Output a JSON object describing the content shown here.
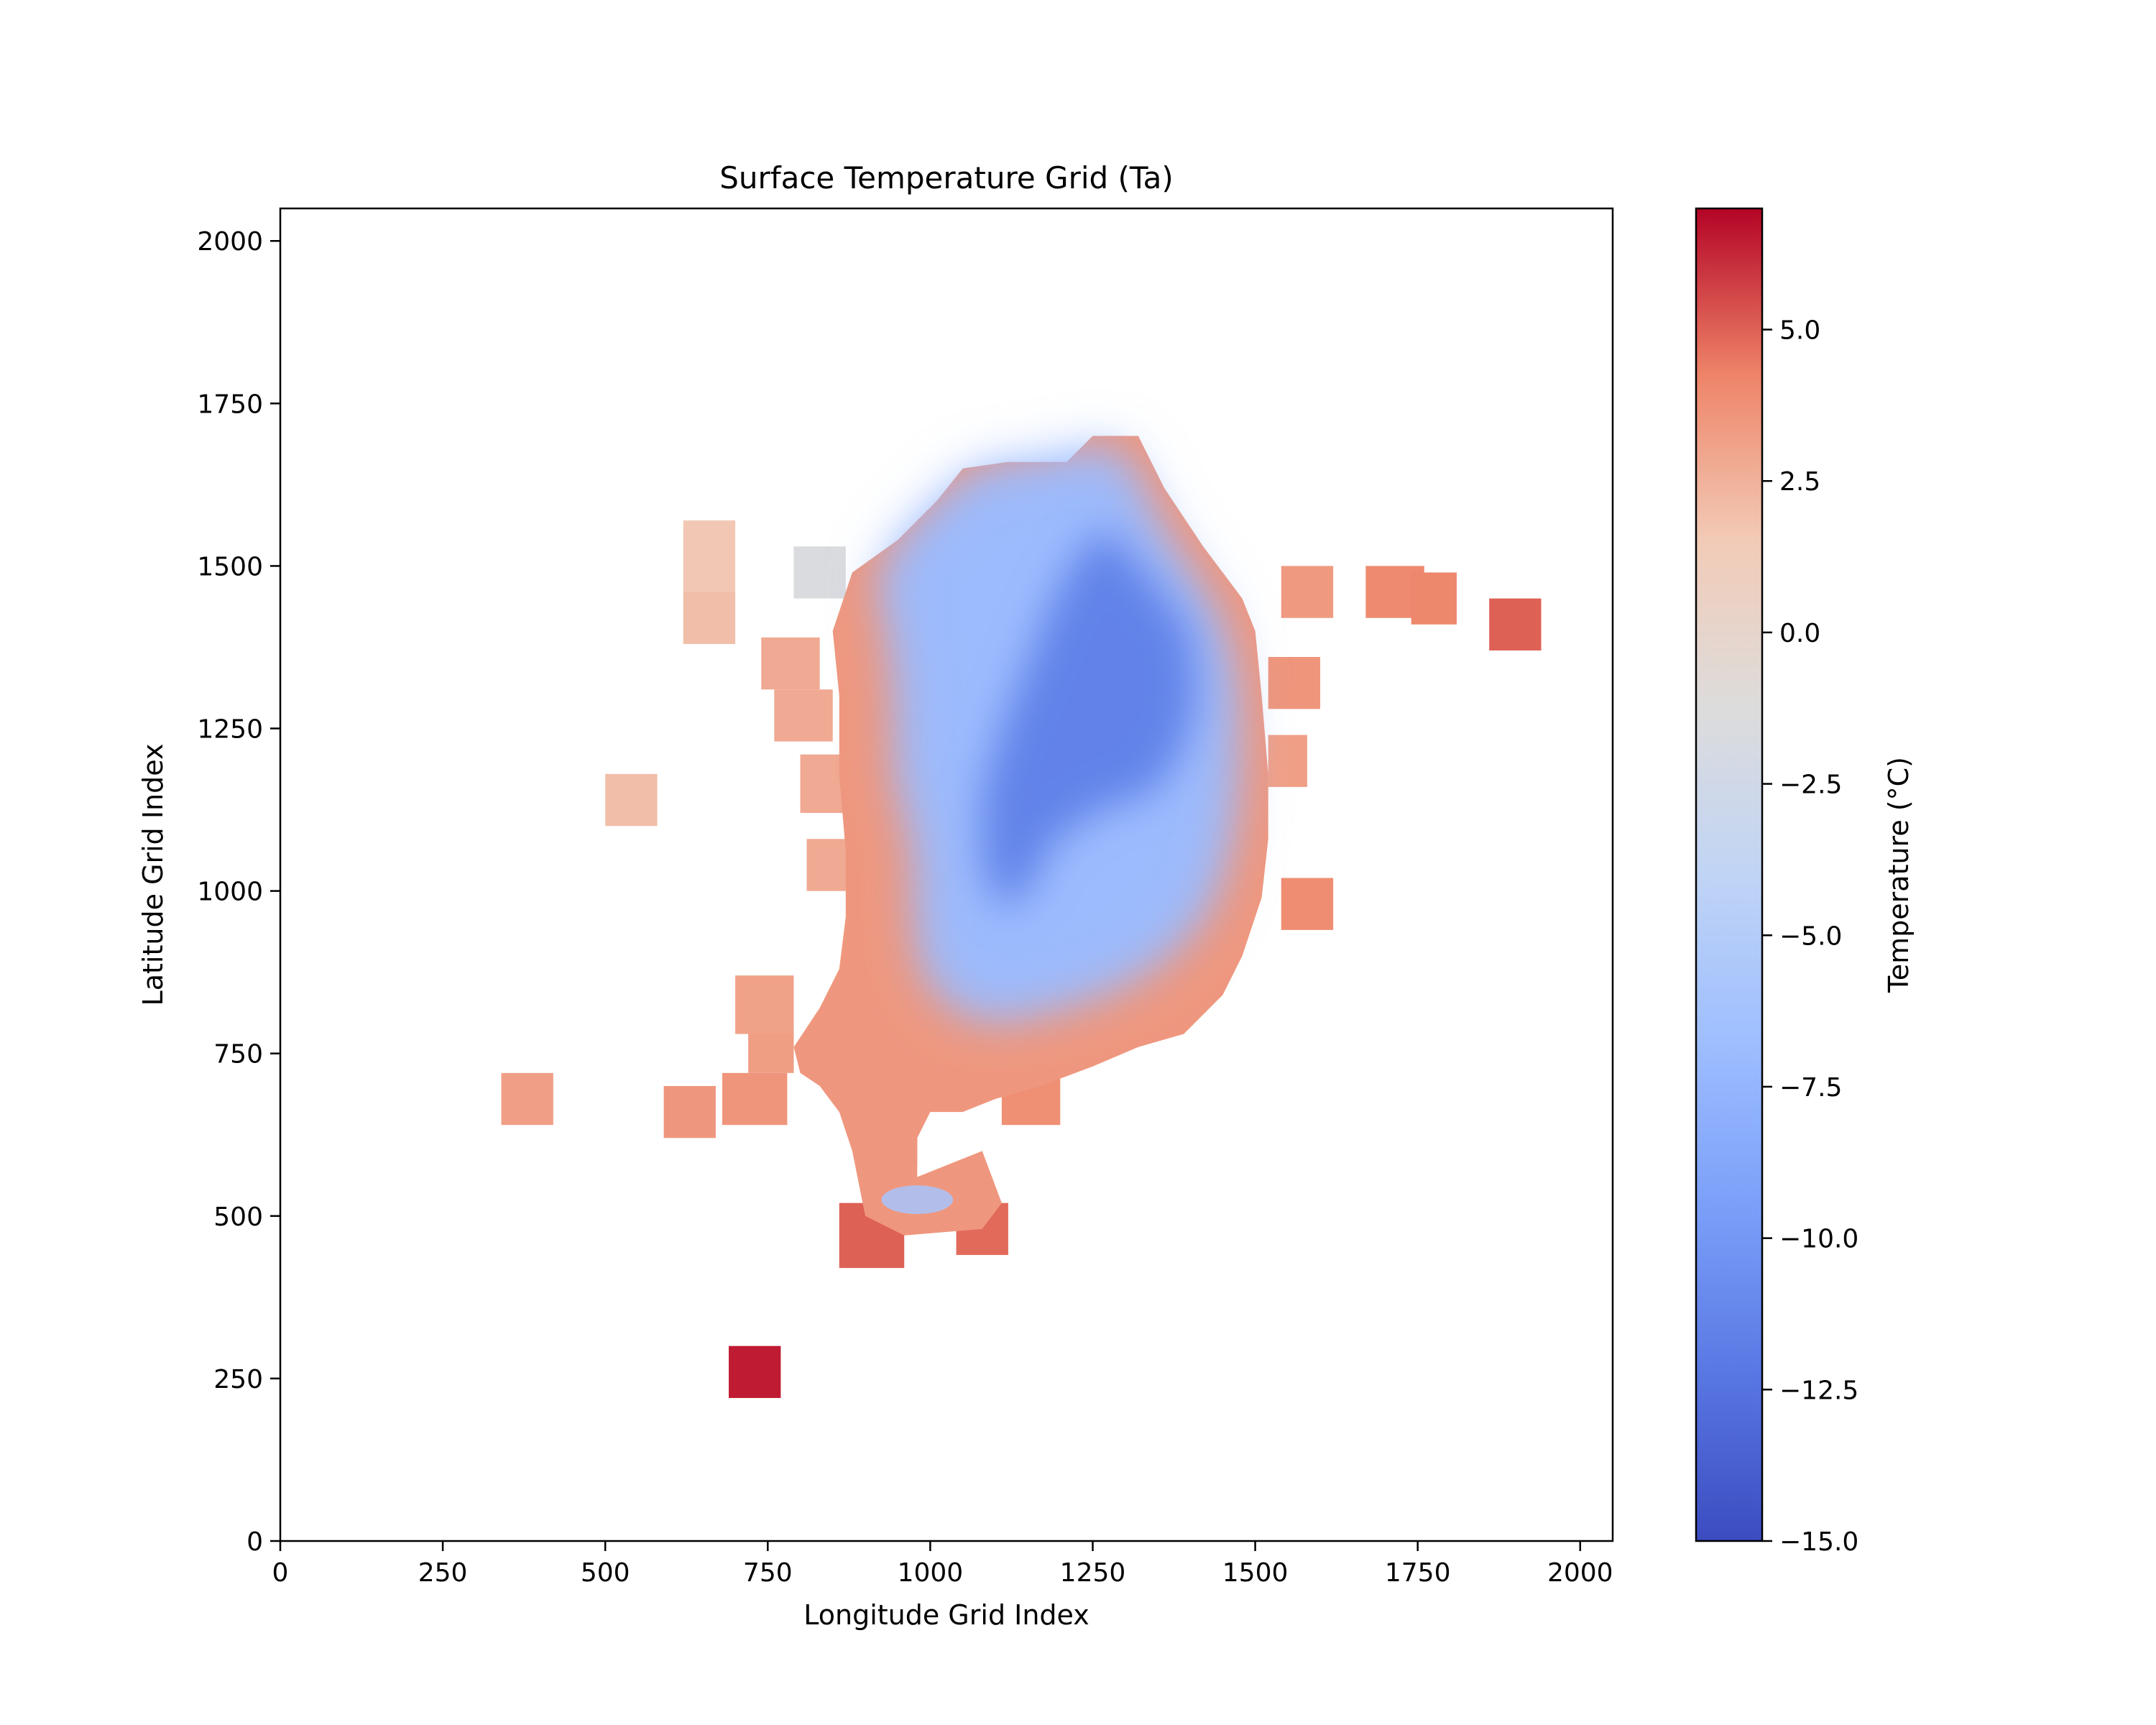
{
  "chart_data": {
    "type": "heatmap",
    "title": "Surface Temperature Grid (Ta)",
    "xlabel": "Longitude Grid Index",
    "ylabel": "Latitude Grid Index",
    "xlim": [
      0,
      2050
    ],
    "ylim": [
      0,
      2050
    ],
    "xticks": [
      0,
      250,
      500,
      750,
      1000,
      1250,
      1500,
      1750,
      2000
    ],
    "yticks": [
      0,
      250,
      500,
      750,
      1000,
      1250,
      1500,
      1750,
      2000
    ],
    "colorbar": {
      "label": "Temperature (°C)",
      "range": [
        -15.0,
        7.0
      ],
      "ticks": [
        5.0,
        2.5,
        0.0,
        -2.5,
        -5.0,
        -7.5,
        -10.0,
        -12.5,
        -15.0
      ],
      "tick_labels": [
        "5.0",
        "2.5",
        "0.0",
        "−2.5",
        "−5.0",
        "−7.5",
        "−10.0",
        "−12.5",
        "−15.0"
      ],
      "colormap": "coolwarm"
    },
    "cells": [
      {
        "x0": 690,
        "x1": 770,
        "y0": 220,
        "y1": 300,
        "t": 6.5
      },
      {
        "x0": 340,
        "x1": 420,
        "y0": 640,
        "y1": 720,
        "t": 3.2
      },
      {
        "x0": 590,
        "x1": 670,
        "y0": 620,
        "y1": 700,
        "t": 3.5
      },
      {
        "x0": 680,
        "x1": 780,
        "y0": 640,
        "y1": 720,
        "t": 3.6
      },
      {
        "x0": 720,
        "x1": 790,
        "y0": 720,
        "y1": 790,
        "t": 3.3
      },
      {
        "x0": 700,
        "x1": 790,
        "y0": 780,
        "y1": 870,
        "t": 3.1
      },
      {
        "x0": 500,
        "x1": 580,
        "y0": 1100,
        "y1": 1180,
        "t": 2.0
      },
      {
        "x0": 620,
        "x1": 700,
        "y0": 1380,
        "y1": 1460,
        "t": 2.0
      },
      {
        "x0": 620,
        "x1": 700,
        "y0": 1460,
        "y1": 1570,
        "t": 1.6
      },
      {
        "x0": 790,
        "x1": 870,
        "y0": 1450,
        "y1": 1530,
        "t": -1.5
      },
      {
        "x0": 740,
        "x1": 830,
        "y0": 1310,
        "y1": 1390,
        "t": 2.8
      },
      {
        "x0": 760,
        "x1": 850,
        "y0": 1230,
        "y1": 1310,
        "t": 2.8
      },
      {
        "x0": 800,
        "x1": 880,
        "y0": 1120,
        "y1": 1210,
        "t": 2.8
      },
      {
        "x0": 810,
        "x1": 890,
        "y0": 1000,
        "y1": 1080,
        "t": 2.8
      },
      {
        "x0": 860,
        "x1": 960,
        "y0": 420,
        "y1": 520,
        "t": 5.0
      },
      {
        "x0": 1040,
        "x1": 1120,
        "y0": 440,
        "y1": 520,
        "t": 4.8
      },
      {
        "x0": 890,
        "x1": 980,
        "y0": 580,
        "y1": 680,
        "t": 3.6
      },
      {
        "x0": 1110,
        "x1": 1200,
        "y0": 640,
        "y1": 720,
        "t": 3.8
      },
      {
        "x0": 1540,
        "x1": 1620,
        "y0": 1420,
        "y1": 1500,
        "t": 3.4
      },
      {
        "x0": 1520,
        "x1": 1600,
        "y0": 1280,
        "y1": 1360,
        "t": 3.6
      },
      {
        "x0": 1520,
        "x1": 1580,
        "y0": 1160,
        "y1": 1240,
        "t": 3.2
      },
      {
        "x0": 1540,
        "x1": 1620,
        "y0": 940,
        "y1": 1020,
        "t": 3.9
      },
      {
        "x0": 1670,
        "x1": 1760,
        "y0": 1420,
        "y1": 1500,
        "t": 4.0
      },
      {
        "x0": 1740,
        "x1": 1810,
        "y0": 1410,
        "y1": 1490,
        "t": 4.1
      },
      {
        "x0": 1860,
        "x1": 1940,
        "y0": 1370,
        "y1": 1450,
        "t": 5.0
      }
    ],
    "main_region": {
      "outline": [
        [
          1250,
          1700
        ],
        [
          1320,
          1700
        ],
        [
          1360,
          1620
        ],
        [
          1420,
          1530
        ],
        [
          1480,
          1450
        ],
        [
          1500,
          1400
        ],
        [
          1510,
          1300
        ],
        [
          1520,
          1180
        ],
        [
          1520,
          1080
        ],
        [
          1510,
          990
        ],
        [
          1480,
          900
        ],
        [
          1450,
          840
        ],
        [
          1390,
          780
        ],
        [
          1320,
          760
        ],
        [
          1250,
          730
        ],
        [
          1170,
          700
        ],
        [
          1100,
          680
        ],
        [
          1050,
          660
        ],
        [
          1000,
          660
        ],
        [
          980,
          620
        ],
        [
          980,
          560
        ],
        [
          1080,
          600
        ],
        [
          1110,
          520
        ],
        [
          1080,
          480
        ],
        [
          960,
          470
        ],
        [
          900,
          500
        ],
        [
          880,
          600
        ],
        [
          860,
          660
        ],
        [
          830,
          700
        ],
        [
          800,
          720
        ],
        [
          790,
          760
        ],
        [
          830,
          820
        ],
        [
          860,
          880
        ],
        [
          870,
          960
        ],
        [
          870,
          1060
        ],
        [
          860,
          1180
        ],
        [
          860,
          1300
        ],
        [
          850,
          1400
        ],
        [
          880,
          1490
        ],
        [
          950,
          1540
        ],
        [
          1010,
          1600
        ],
        [
          1050,
          1650
        ],
        [
          1120,
          1660
        ],
        [
          1210,
          1660
        ],
        [
          1250,
          1700
        ]
      ],
      "interior_outline": [
        [
          1260,
          1680
        ],
        [
          1300,
          1650
        ],
        [
          1340,
          1560
        ],
        [
          1400,
          1470
        ],
        [
          1440,
          1400
        ],
        [
          1460,
          1300
        ],
        [
          1460,
          1180
        ],
        [
          1450,
          1080
        ],
        [
          1420,
          980
        ],
        [
          1360,
          910
        ],
        [
          1280,
          860
        ],
        [
          1190,
          830
        ],
        [
          1100,
          810
        ],
        [
          1040,
          830
        ],
        [
          1000,
          880
        ],
        [
          990,
          960
        ],
        [
          990,
          1060
        ],
        [
          960,
          1180
        ],
        [
          960,
          1300
        ],
        [
          950,
          1400
        ],
        [
          930,
          1480
        ],
        [
          970,
          1540
        ],
        [
          1030,
          1600
        ],
        [
          1080,
          1640
        ],
        [
          1160,
          1650
        ],
        [
          1230,
          1660
        ],
        [
          1260,
          1680
        ]
      ],
      "core_outline": [
        [
          1270,
          1560
        ],
        [
          1340,
          1480
        ],
        [
          1400,
          1400
        ],
        [
          1410,
          1300
        ],
        [
          1390,
          1220
        ],
        [
          1340,
          1150
        ],
        [
          1270,
          1130
        ],
        [
          1190,
          1080
        ],
        [
          1150,
          1000
        ],
        [
          1110,
          970
        ],
        [
          1080,
          1040
        ],
        [
          1080,
          1150
        ],
        [
          1110,
          1250
        ],
        [
          1150,
          1350
        ],
        [
          1190,
          1450
        ],
        [
          1230,
          1520
        ],
        [
          1270,
          1560
        ]
      ],
      "edge_temperature": 3.5,
      "interior_temperature": -7.0,
      "core_temperature": -11.5
    },
    "hotspot": {
      "x": 980,
      "y": 525,
      "rx": 55,
      "ry": 22,
      "t": -6.0
    }
  }
}
